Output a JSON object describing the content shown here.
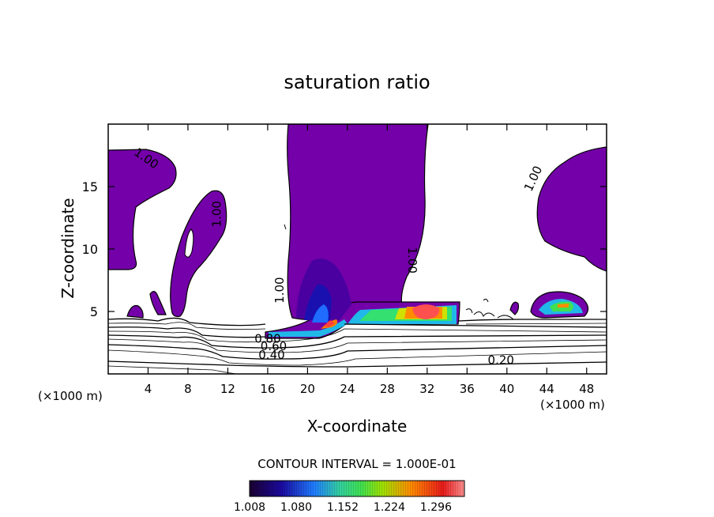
{
  "chart_data": {
    "type": "contour",
    "title": "saturation ratio",
    "xlabel": "X-coordinate",
    "ylabel": "Z-coordinate",
    "x_unit_left": "(×1000 m)",
    "x_unit_right": "(×1000 m)",
    "xlim": [
      0,
      50
    ],
    "ylim": [
      0,
      20
    ],
    "x_ticks": [
      4,
      8,
      12,
      16,
      20,
      24,
      28,
      32,
      36,
      40,
      44,
      48
    ],
    "y_ticks": [
      5,
      10,
      15
    ],
    "contour_interval_text": "CONTOUR INTERVAL = 1.000E-01",
    "colorbar": {
      "min": 1.008,
      "max": 1.34,
      "labels": [
        "1.008",
        "1.080",
        "1.152",
        "1.224",
        "1.296"
      ],
      "colors": [
        "#1a0030",
        "#0a1fb0",
        "#1f8cff",
        "#33e07a",
        "#a0e000",
        "#ff7a00",
        "#e81a1a",
        "#ff8080"
      ]
    },
    "contour_labels": [
      {
        "text": "1.00",
        "x": 3.6,
        "z": 17.0,
        "rot": 35
      },
      {
        "text": "1.00",
        "x": 11.3,
        "z": 12.8,
        "rot": -90
      },
      {
        "text": "1.00",
        "x": 17.6,
        "z": 6.7,
        "rot": -90
      },
      {
        "text": "1.00",
        "x": 30.1,
        "z": 9.1,
        "rot": 90
      },
      {
        "text": "1.00",
        "x": 43.0,
        "z": 15.5,
        "rot": -65
      },
      {
        "text": "0.80",
        "x": 16.0,
        "z": 2.5,
        "rot": 0
      },
      {
        "text": "0.60",
        "x": 16.6,
        "z": 1.9,
        "rot": 0
      },
      {
        "text": "0.40",
        "x": 16.4,
        "z": 1.2,
        "rot": 0
      },
      {
        "text": "0.20",
        "x": 39.4,
        "z": 0.8,
        "rot": 0
      }
    ],
    "supersaturated_regions": [
      {
        "name": "upper-left block",
        "x_range": [
          0,
          7.0
        ],
        "z_range": [
          8.4,
          18.0
        ]
      },
      {
        "name": "finger",
        "x_range": [
          6.5,
          11.0
        ],
        "z_range": [
          4.5,
          14.2
        ]
      },
      {
        "name": "central column",
        "x_range": [
          17.5,
          32.0
        ],
        "z_range": [
          4.0,
          20.0
        ]
      },
      {
        "name": "anvil",
        "x_range": [
          18.5,
          35.0
        ],
        "z_range": [
          3.5,
          6.0
        ]
      },
      {
        "name": "right block",
        "x_range": [
          42.5,
          50.0
        ],
        "z_range": [
          8.5,
          18.0
        ]
      },
      {
        "name": "right low cloud",
        "x_range": [
          42.5,
          48.0
        ],
        "z_range": [
          4.5,
          6.3
        ]
      }
    ]
  }
}
